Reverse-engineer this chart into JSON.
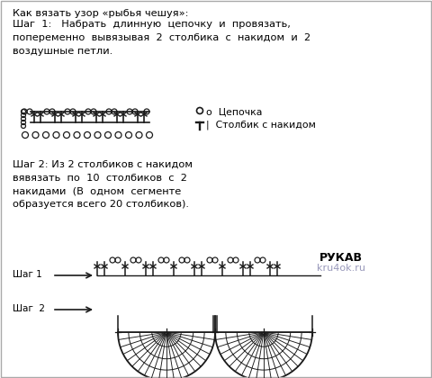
{
  "bg_color": "#ffffff",
  "text_color": "#000000",
  "title_line1": "Как вязать узор «рыбья чешуя»:",
  "step1_text": "Шаг  1:   Набрать  длинную  цепочку  и  провязать,\nпопеременно  вывязывая  2  столбика  с  накидом  и  2\nвоздушные петли.",
  "legend1": "о  Цепочка",
  "legend2": "|  Столбик с накидом",
  "step2_text": "Шаг 2: Из 2 столбиков с накидом\nвявязать  по  10  столбиков  с  2\nнакидами  (В  одном  сегменте\nобразуется всего 20 столбиков).",
  "label_rukav": "РУКАВ",
  "label_kru4ok": "kru4ok.ru",
  "label_shag1": "Шаг 1",
  "label_shag2": "Шаг  2",
  "diagram_color": "#1a1a1a",
  "kru4ok_color": "#9999bb"
}
